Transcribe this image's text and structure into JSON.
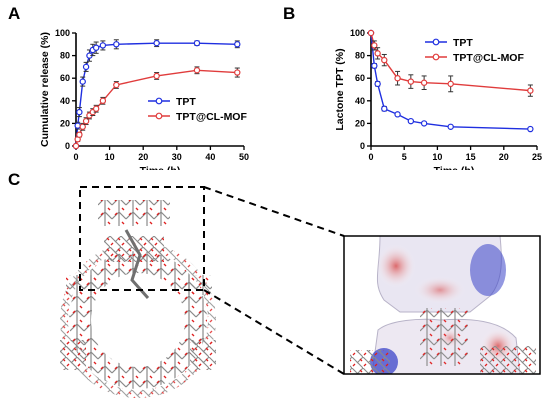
{
  "panels": {
    "a": {
      "letter": "A"
    },
    "b": {
      "letter": "B"
    },
    "c": {
      "letter": "C"
    }
  },
  "colors": {
    "tpt": "#1f2fe0",
    "cl_mof": "#e03c3c",
    "axis": "#000000",
    "bond": "#8a8a8a",
    "oxygen": "#e02020"
  },
  "chart_data": [
    {
      "type": "line",
      "panel": "A",
      "title": "",
      "xlabel": "Time (h)",
      "ylabel": "Cumulative release (%)",
      "xlim": [
        0,
        50
      ],
      "ylim": [
        0,
        100
      ],
      "xticks": [
        "0",
        "10",
        "20",
        "30",
        "40",
        "50"
      ],
      "yticks": [
        "0",
        "20",
        "40",
        "60",
        "80",
        "100"
      ],
      "grid": false,
      "legend_position": "middle-right",
      "series": [
        {
          "name": "TPT",
          "color": "#1f2fe0",
          "marker": "circle",
          "x": [
            0,
            0.5,
            1,
            2,
            3,
            4,
            5,
            6,
            8,
            12,
            24,
            36,
            48
          ],
          "y": [
            0,
            18,
            30,
            57,
            70,
            80,
            85,
            87,
            89,
            90,
            91,
            91,
            90
          ],
          "err": [
            0,
            3,
            4,
            4,
            4,
            5,
            5,
            5,
            4,
            4,
            3,
            2,
            3
          ]
        },
        {
          "name": "TPT@CL-MOF",
          "color": "#e03c3c",
          "marker": "circle",
          "x": [
            0,
            0.5,
            1,
            2,
            3,
            4,
            5,
            6,
            8,
            12,
            24,
            36,
            48
          ],
          "y": [
            0,
            6,
            10,
            17,
            22,
            27,
            30,
            33,
            40,
            54,
            62,
            67,
            65
          ],
          "err": [
            0,
            2,
            2,
            3,
            3,
            3,
            3,
            3,
            3,
            3,
            3,
            3,
            4
          ]
        }
      ]
    },
    {
      "type": "line",
      "panel": "B",
      "title": "",
      "xlabel": "Time (h)",
      "ylabel": "Lactone TPT (%)",
      "xlim": [
        0,
        25
      ],
      "ylim": [
        0,
        100
      ],
      "xticks": [
        "0",
        "5",
        "10",
        "15",
        "20",
        "25"
      ],
      "yticks": [
        "0",
        "20",
        "40",
        "60",
        "80",
        "100"
      ],
      "grid": false,
      "legend_position": "top-right",
      "series": [
        {
          "name": "TPT",
          "color": "#1f2fe0",
          "marker": "circle",
          "x": [
            0,
            0.5,
            1,
            2,
            4,
            6,
            8,
            12,
            24
          ],
          "y": [
            100,
            71,
            55,
            33,
            28,
            22,
            20,
            17,
            15
          ],
          "err": [
            0,
            2,
            2,
            2,
            1,
            1,
            1,
            1,
            1
          ]
        },
        {
          "name": "TPT@CL-MOF",
          "color": "#e03c3c",
          "marker": "circle",
          "x": [
            0,
            0.5,
            1,
            2,
            4,
            6,
            8,
            12,
            24
          ],
          "y": [
            100,
            89,
            82,
            76,
            60,
            57,
            56,
            55,
            49
          ],
          "err": [
            0,
            4,
            5,
            5,
            6,
            6,
            6,
            7,
            5
          ]
        }
      ]
    }
  ]
}
